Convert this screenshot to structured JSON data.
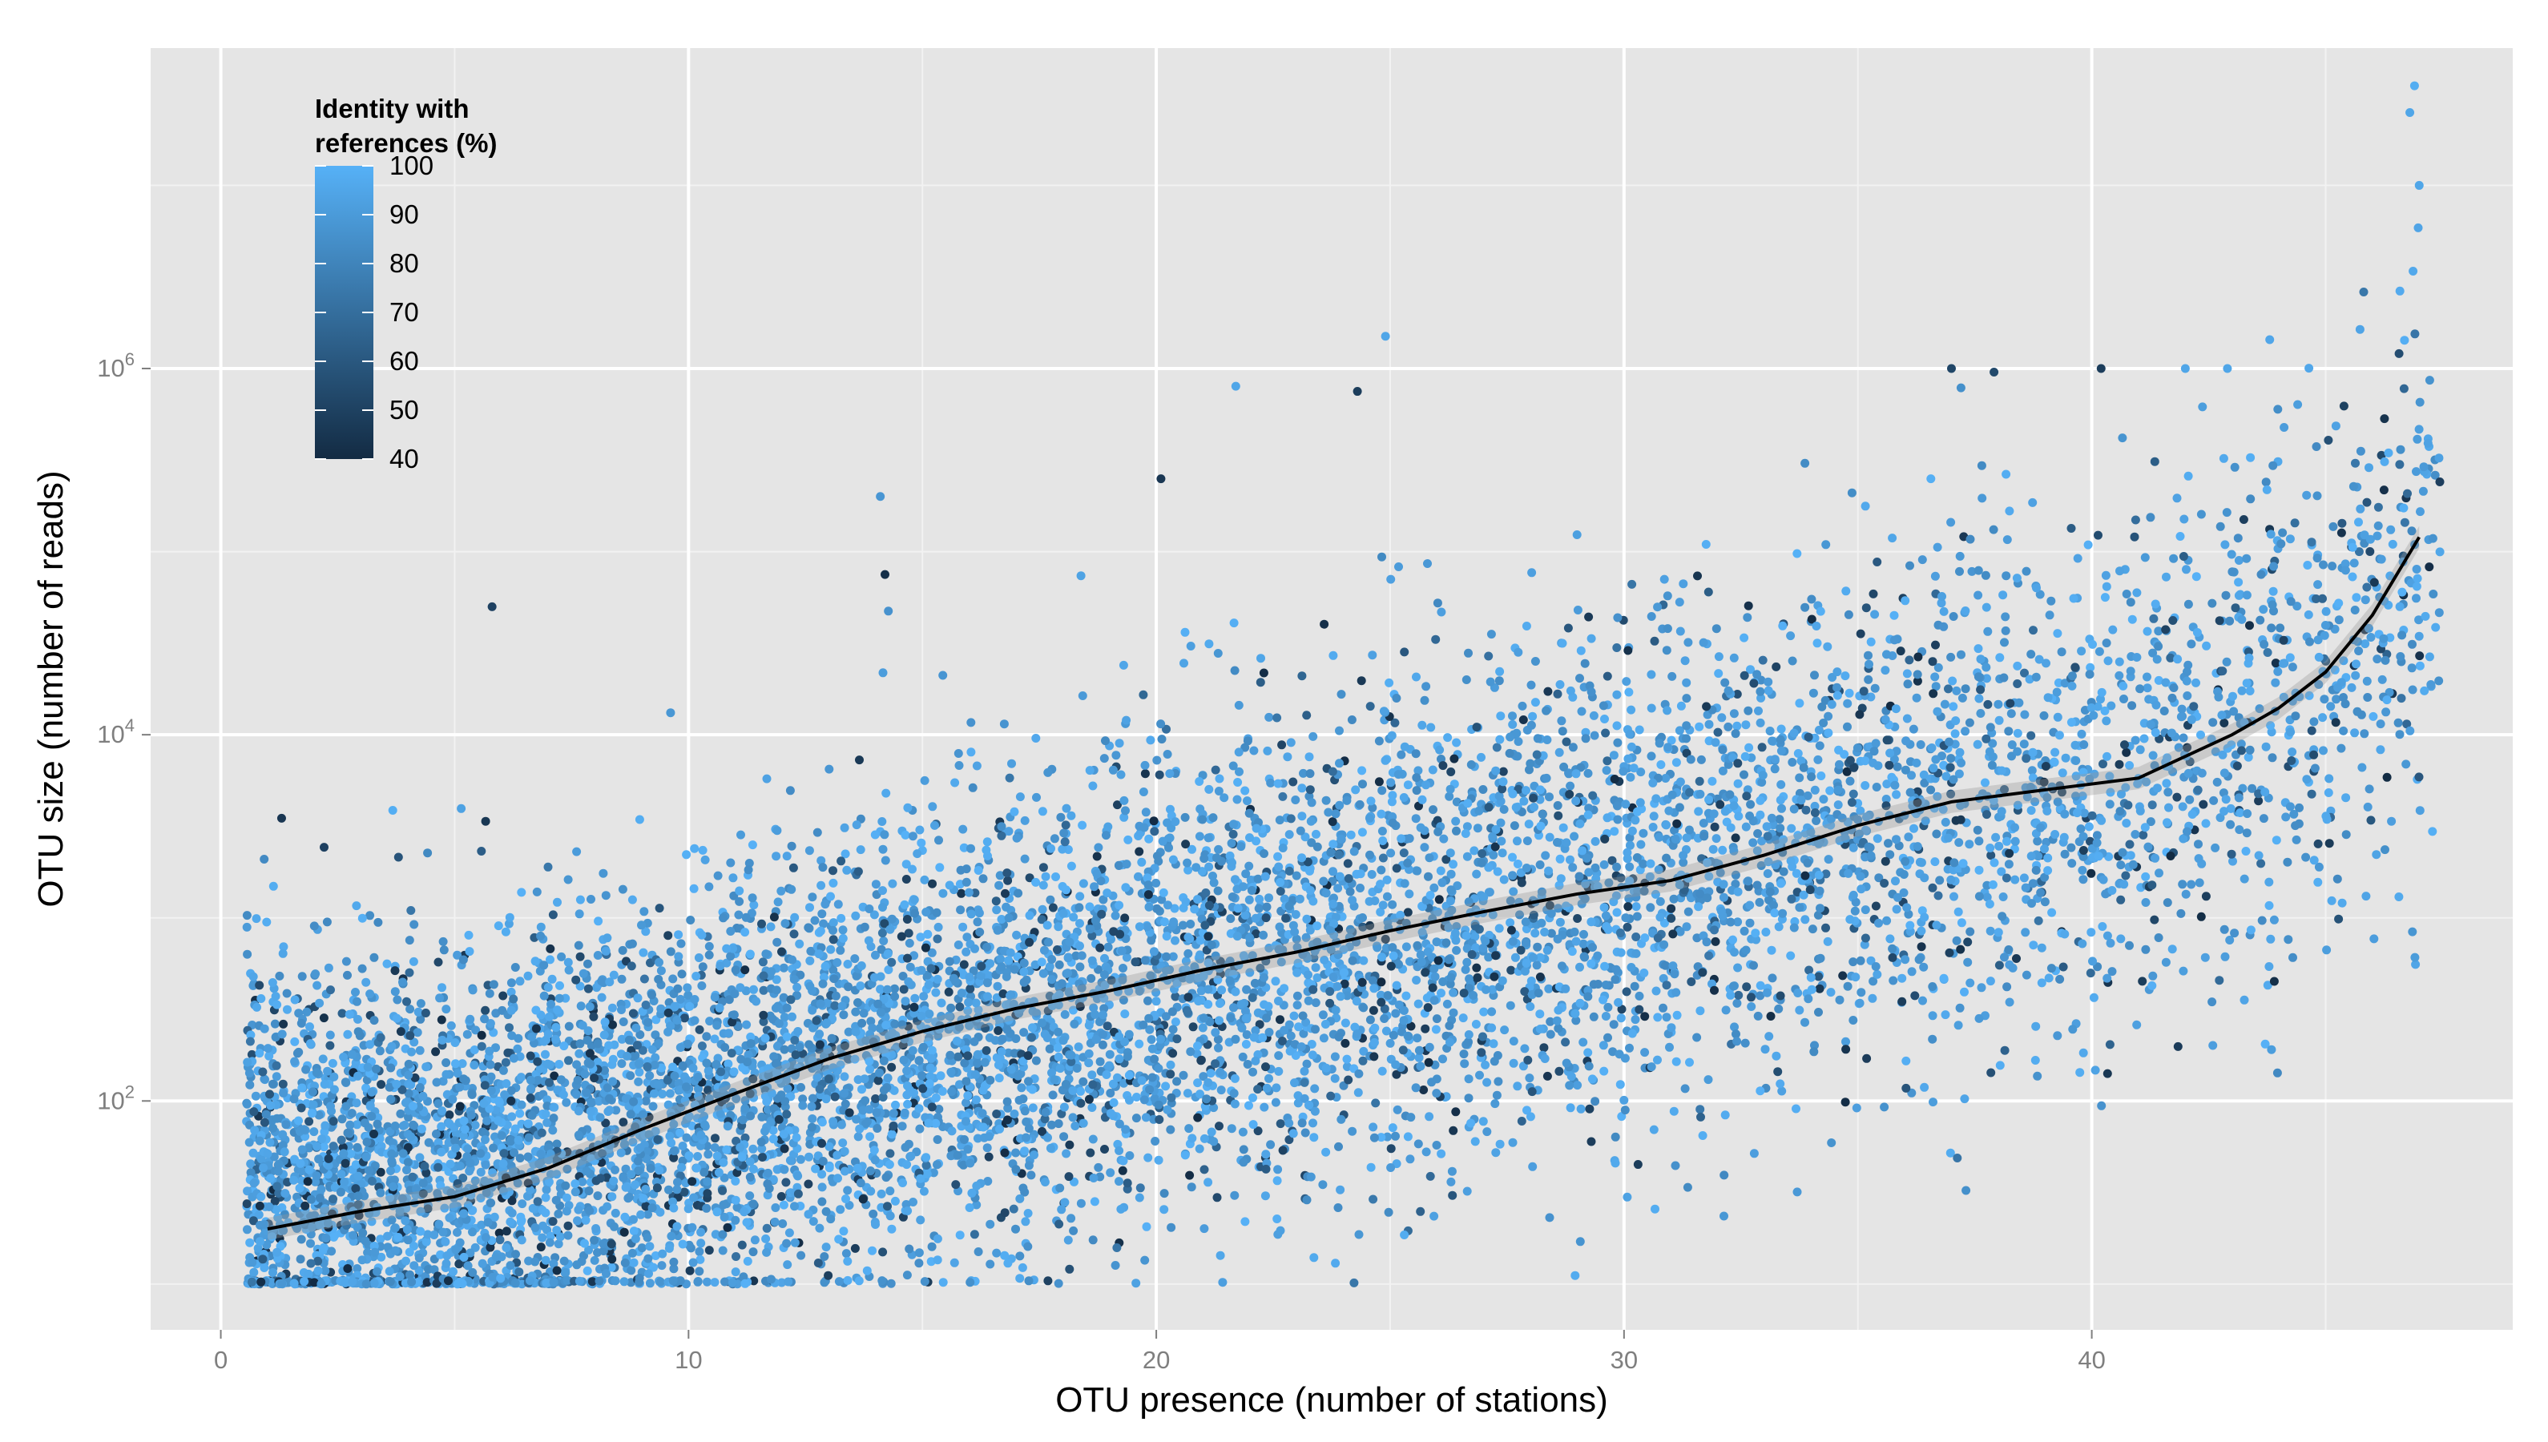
{
  "chart_data": {
    "type": "scatter",
    "xlabel": "OTU presence (number of stations)",
    "ylabel": "OTU size (number of reads)",
    "xlim": [
      -1.5,
      49
    ],
    "ylim_log10": [
      0.75,
      7.75
    ],
    "y_scale": "log10",
    "grid": true,
    "x_ticks": [
      {
        "value": 0,
        "label": "0"
      },
      {
        "value": 10,
        "label": "10"
      },
      {
        "value": 20,
        "label": "20"
      },
      {
        "value": 30,
        "label": "30"
      },
      {
        "value": 40,
        "label": "40"
      }
    ],
    "y_ticks": [
      {
        "value": 100,
        "base": "10",
        "exp": "2"
      },
      {
        "value": 10000,
        "base": "10",
        "exp": "4"
      },
      {
        "value": 1000000,
        "base": "10",
        "exp": "6"
      }
    ],
    "color_scale": {
      "title_lines": [
        "Identity with",
        "references (%)"
      ],
      "min": 40,
      "max": 100,
      "low_color": "#132B43",
      "high_color": "#56B1F7",
      "breaks": [
        40,
        50,
        60,
        70,
        80,
        90,
        100
      ],
      "break_labels": [
        "40",
        "50",
        "60",
        "70",
        "80",
        "90",
        "100"
      ],
      "legend_position": "top-left"
    },
    "point_cloud": {
      "x_range": [
        1,
        47
      ],
      "jitter": 0.45,
      "min_reads": 10,
      "median_reads": [
        {
          "x": 1,
          "reads": 40
        },
        {
          "x": 5,
          "reads": 45
        },
        {
          "x": 10,
          "reads": 90
        },
        {
          "x": 15,
          "reads": 200
        },
        {
          "x": 20,
          "reads": 450
        },
        {
          "x": 25,
          "reads": 900
        },
        {
          "x": 30,
          "reads": 1600
        },
        {
          "x": 35,
          "reads": 3200
        },
        {
          "x": 40,
          "reads": 5500
        },
        {
          "x": 43,
          "reads": 10000
        },
        {
          "x": 45,
          "reads": 22000
        },
        {
          "x": 47,
          "reads": 60000
        }
      ],
      "max_reads": [
        {
          "x": 1,
          "reads": 3500
        },
        {
          "x": 10,
          "reads": 40000
        },
        {
          "x": 14,
          "reads": 200000
        },
        {
          "x": 20,
          "reads": 250000
        },
        {
          "x": 25,
          "reads": 1500000
        },
        {
          "x": 30,
          "reads": 70000
        },
        {
          "x": 37,
          "reads": 1000000
        },
        {
          "x": 43,
          "reads": 1000000
        },
        {
          "x": 47,
          "reads": 50000000
        }
      ]
    },
    "highlighted_points": [
      {
        "x": 1.3,
        "reads": 3500,
        "identity": 45
      },
      {
        "x": 5.8,
        "reads": 50000,
        "identity": 50
      },
      {
        "x": 14.1,
        "reads": 200000,
        "identity": 88
      },
      {
        "x": 14.2,
        "reads": 75000,
        "identity": 42
      },
      {
        "x": 20.1,
        "reads": 250000,
        "identity": 45
      },
      {
        "x": 21.7,
        "reads": 800000,
        "identity": 95
      },
      {
        "x": 24.3,
        "reads": 750000,
        "identity": 48
      },
      {
        "x": 24.9,
        "reads": 1500000,
        "identity": 95
      },
      {
        "x": 37.0,
        "reads": 1000000,
        "identity": 52
      },
      {
        "x": 40.2,
        "reads": 1000000,
        "identity": 48
      },
      {
        "x": 42.0,
        "reads": 1000000,
        "identity": 95
      },
      {
        "x": 42.9,
        "reads": 1000000,
        "identity": 95
      },
      {
        "x": 46.8,
        "reads": 25000000,
        "identity": 95
      },
      {
        "x": 46.9,
        "reads": 35000000,
        "identity": 98
      },
      {
        "x": 47.0,
        "reads": 10000000,
        "identity": 95
      },
      {
        "x": 29.3,
        "reads": 60,
        "identity": 48
      },
      {
        "x": 30.3,
        "reads": 45,
        "identity": 48
      }
    ],
    "smooth_line": {
      "color": "#000000",
      "points": [
        {
          "x": 1,
          "y": 20
        },
        {
          "x": 3,
          "y": 25
        },
        {
          "x": 5,
          "y": 30
        },
        {
          "x": 7,
          "y": 43
        },
        {
          "x": 9,
          "y": 70
        },
        {
          "x": 11,
          "y": 110
        },
        {
          "x": 13,
          "y": 170
        },
        {
          "x": 15,
          "y": 240
        },
        {
          "x": 17,
          "y": 320
        },
        {
          "x": 19,
          "y": 400
        },
        {
          "x": 21,
          "y": 520
        },
        {
          "x": 23,
          "y": 650
        },
        {
          "x": 25,
          "y": 850
        },
        {
          "x": 27,
          "y": 1080
        },
        {
          "x": 29,
          "y": 1350
        },
        {
          "x": 31,
          "y": 1600
        },
        {
          "x": 33,
          "y": 2200
        },
        {
          "x": 35,
          "y": 3200
        },
        {
          "x": 37,
          "y": 4300
        },
        {
          "x": 39,
          "y": 5000
        },
        {
          "x": 41,
          "y": 5800
        },
        {
          "x": 43,
          "y": 10000
        },
        {
          "x": 44,
          "y": 14000
        },
        {
          "x": 45,
          "y": 22000
        },
        {
          "x": 46,
          "y": 45000
        },
        {
          "x": 47,
          "y": 120000
        }
      ]
    }
  }
}
